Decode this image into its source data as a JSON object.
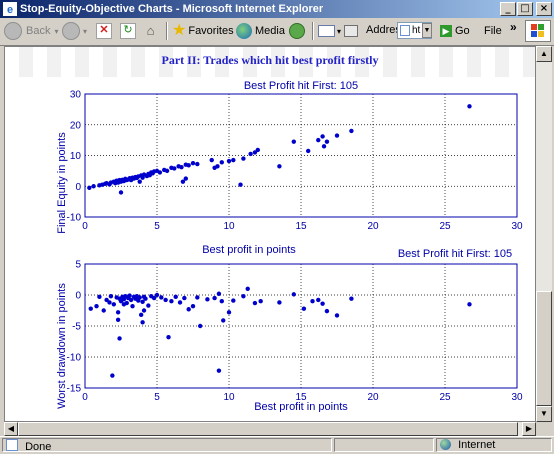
{
  "window": {
    "title": "Stop-Equity-Objective Charts - Microsoft Internet Explorer",
    "caption_buttons": [
      "minimize",
      "maximize",
      "close"
    ]
  },
  "toolbar": {
    "back_label": "Back",
    "favorites_label": "Favorites",
    "media_label": "Media",
    "address_label": "Address",
    "address_value": "ht",
    "go_label": "Go",
    "file_label": "File"
  },
  "page": {
    "heading": "Part II: Trades which hit best profit firstly"
  },
  "status": {
    "text": "Done",
    "zone": "Internet"
  },
  "chart_data": [
    {
      "type": "scatter",
      "title": "Best Profit hit First: 105",
      "xlabel": "Best profit in points",
      "ylabel": "Final Equity in points",
      "xlim": [
        0,
        30
      ],
      "ylim": [
        -10,
        30
      ],
      "xticks": [
        0,
        5,
        10,
        15,
        20,
        25,
        30
      ],
      "yticks": [
        -10,
        0,
        10,
        20,
        30
      ],
      "grid": true,
      "color": "#0000cc",
      "x": [
        0.3,
        0.6,
        1.0,
        1.2,
        1.4,
        1.5,
        1.7,
        1.8,
        2.0,
        2.1,
        2.2,
        2.3,
        2.4,
        2.5,
        2.6,
        2.7,
        2.8,
        2.9,
        3.0,
        3.1,
        3.2,
        3.3,
        3.4,
        3.5,
        3.6,
        3.7,
        3.8,
        3.9,
        4.0,
        4.1,
        4.3,
        4.4,
        4.5,
        4.6,
        4.7,
        4.8,
        5.0,
        5.2,
        5.5,
        5.7,
        6.0,
        6.2,
        6.5,
        6.7,
        7.0,
        7.2,
        7.5,
        7.8,
        6.8,
        7.0,
        8.8,
        9.0,
        9.2,
        9.5,
        10.0,
        10.3,
        11.0,
        11.5,
        11.8,
        12.0,
        13.5,
        14.5,
        15.5,
        16.2,
        16.5,
        16.6,
        16.8,
        17.5,
        18.5,
        10.8,
        2.5,
        26.7
      ],
      "y": [
        -0.5,
        0,
        0.3,
        0.5,
        0.8,
        1.0,
        0.6,
        1.2,
        1.5,
        1.0,
        1.8,
        1.2,
        2.0,
        1.5,
        2.1,
        1.7,
        2.4,
        2.0,
        2.2,
        2.6,
        2.0,
        2.8,
        2.5,
        3.0,
        2.7,
        3.2,
        1.5,
        3.5,
        2.8,
        3.8,
        3.3,
        4.0,
        3.6,
        4.5,
        4.2,
        4.8,
        5.0,
        4.5,
        5.3,
        5.0,
        6.0,
        5.8,
        6.5,
        6.2,
        7.0,
        6.8,
        7.5,
        7.2,
        1.5,
        2.5,
        8.5,
        6.0,
        6.5,
        7.8,
        8.2,
        8.5,
        9.0,
        10.5,
        11.0,
        11.8,
        6.5,
        14.5,
        11.5,
        15.0,
        16.2,
        13.0,
        14.5,
        16.5,
        18.0,
        0.5,
        -2.0,
        26.0
      ]
    },
    {
      "type": "scatter",
      "title": "Best Profit hit First: 105",
      "xlabel": "Best profit in points",
      "ylabel": "Worst drawdown in points",
      "xlim": [
        0,
        30
      ],
      "ylim": [
        -15,
        5
      ],
      "xticks": [
        0,
        5,
        10,
        15,
        20,
        25,
        30
      ],
      "yticks": [
        -15,
        -10,
        -5,
        0,
        5
      ],
      "grid": true,
      "color": "#0000cc",
      "x": [
        0.4,
        0.8,
        1.0,
        1.3,
        1.5,
        1.7,
        1.8,
        2.0,
        2.2,
        2.3,
        2.4,
        2.5,
        2.6,
        2.7,
        2.8,
        2.9,
        3.0,
        3.1,
        3.2,
        3.3,
        3.4,
        3.5,
        3.6,
        3.7,
        3.8,
        3.9,
        4.0,
        4.1,
        4.2,
        4.4,
        4.6,
        4.8,
        5.0,
        5.3,
        5.6,
        6.0,
        6.3,
        6.6,
        6.9,
        7.2,
        7.5,
        7.8,
        8.0,
        8.5,
        9.0,
        9.3,
        9.5,
        9.6,
        10.0,
        10.3,
        11.0,
        11.3,
        11.8,
        12.2,
        13.5,
        14.5,
        15.2,
        15.8,
        16.2,
        16.5,
        16.8,
        17.5,
        18.5,
        2.3,
        2.4,
        1.9,
        2.7,
        4.0,
        4.1,
        5.8,
        9.3,
        26.7
      ],
      "y": [
        -2.2,
        -1.8,
        -0.3,
        -2.5,
        -0.8,
        -1.2,
        -0.2,
        -1.5,
        -0.4,
        -2.8,
        -0.6,
        -1.0,
        -0.3,
        -0.7,
        -0.2,
        -1.3,
        -0.5,
        -0.1,
        -0.8,
        -1.8,
        -0.3,
        -0.6,
        -0.2,
        -0.9,
        -0.4,
        -3.2,
        -1.1,
        -0.3,
        -0.6,
        -1.7,
        -0.2,
        -0.5,
        0,
        -0.4,
        -0.8,
        -1.0,
        -0.3,
        -1.2,
        -0.5,
        -2.3,
        -1.8,
        -0.4,
        -5.0,
        -0.7,
        -0.5,
        0.2,
        -1.0,
        -4.1,
        -2.8,
        -0.9,
        -0.2,
        1.0,
        -1.3,
        -1.0,
        -1.2,
        0.1,
        -2.2,
        -1.0,
        -0.8,
        -1.4,
        -2.6,
        -3.3,
        -0.6,
        -4.0,
        -7.0,
        -13.0,
        -1.5,
        -4.4,
        -2.5,
        -6.8,
        -12.2,
        -1.5
      ]
    }
  ]
}
